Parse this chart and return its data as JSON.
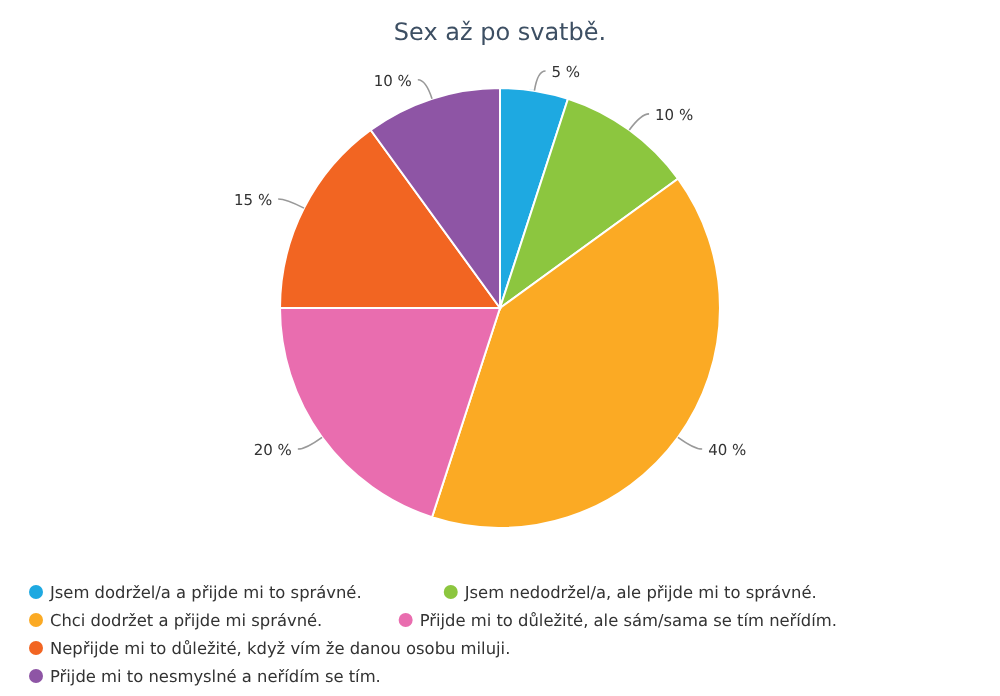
{
  "chart_data": {
    "type": "pie",
    "title": "Sex až po svatbě.",
    "categories": [
      "Jsem dodržel/a a přijde mi to správné.",
      "Jsem nedodržel/a, ale přijde mi to správné.",
      "Chci dodržet a přijde mi správné.",
      "Přijde mi to důležité, ale sám/sama se tím neřídím.",
      "Nepřijde mi to důležité, když vím že danou osobu miluji.",
      "Přijde mi to nesmyslné a neřídím se tím."
    ],
    "values": [
      5,
      10,
      40,
      20,
      15,
      10
    ],
    "value_labels": [
      "5 %",
      "10 %",
      "40 %",
      "20 %",
      "15 %",
      "10 %"
    ],
    "colors": [
      "#1ea9e1",
      "#8cc63f",
      "#fbaa24",
      "#e96daf",
      "#f26522",
      "#8e55a5"
    ],
    "legend": "bottom"
  }
}
